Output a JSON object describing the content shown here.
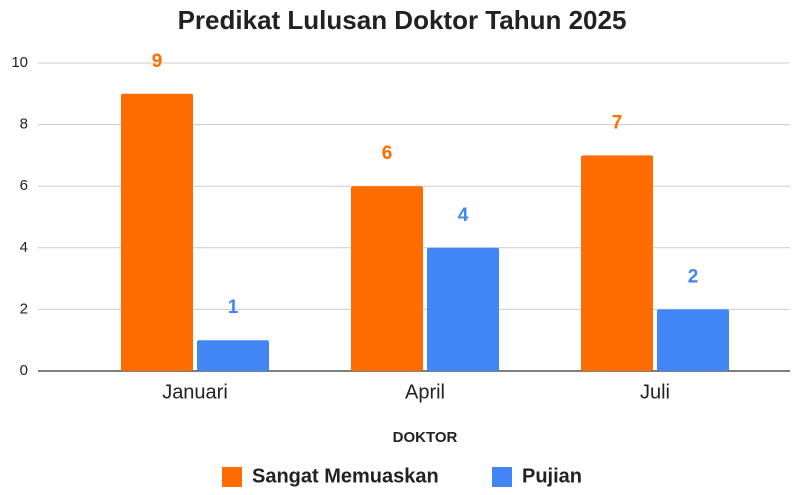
{
  "chart_data": {
    "type": "bar",
    "title": "Predikat Lulusan Doktor Tahun 2025",
    "x_label": "DOKTOR",
    "categories": [
      "Januari",
      "April",
      "Juli"
    ],
    "series": [
      {
        "name": "Sangat Memuaskan",
        "color": "#ff6d00",
        "values": [
          9,
          6,
          7
        ]
      },
      {
        "name": "Pujian",
        "color": "#4285f4",
        "values": [
          1,
          4,
          2
        ]
      }
    ],
    "ylim": [
      0,
      10
    ],
    "yticks": [
      0,
      2,
      4,
      6,
      8,
      10
    ],
    "grid": true,
    "legend": "bottom"
  }
}
